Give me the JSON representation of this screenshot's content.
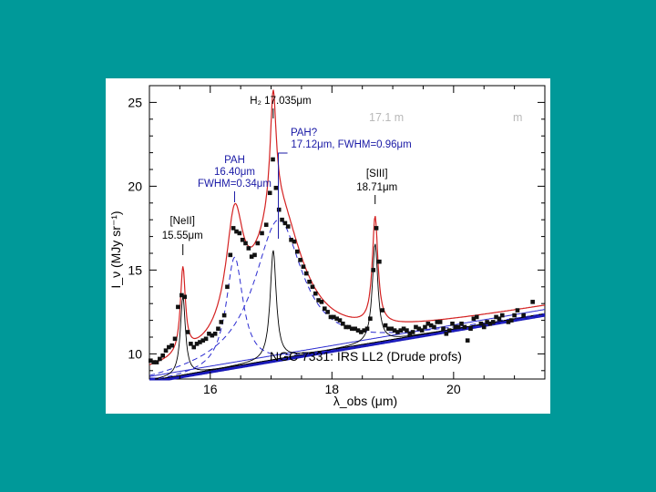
{
  "chart_data": {
    "type": "scatter",
    "title": "",
    "xlabel": "λ_obs (μm)",
    "ylabel": "I_ν (MJy sr⁻¹)",
    "xlim": [
      15.0,
      21.5
    ],
    "ylim": [
      8.5,
      26.0
    ],
    "x_ticks": [
      16,
      18,
      20
    ],
    "y_ticks": [
      10,
      15,
      20,
      25
    ],
    "grid": false,
    "colors": {
      "data_points": "#111111",
      "total_fit": "#d42222",
      "gaussian_components": "#000000",
      "pah_components": "#2a2ad0",
      "continuum": "#1818b8"
    },
    "caption": "NGC 7331: IRS LL2 (Drude profs)",
    "header_text": {
      "left": "17.1  m",
      "right": "m"
    },
    "annotations": [
      {
        "label": "[NeII]",
        "sublabel": "15.55μm",
        "x": 15.55,
        "color": "black"
      },
      {
        "label": "PAH",
        "sublabel": "16.40μm",
        "extra": "FWHM=0.34μm",
        "x": 16.4,
        "color": "blue"
      },
      {
        "label": "H₂ 17.035μm",
        "x": 17.035,
        "color": "black"
      },
      {
        "label": "PAH?",
        "sublabel": "17.12μm, FWHM=0.96μm",
        "x": 17.12,
        "color": "blue"
      },
      {
        "label": "[SIII]",
        "sublabel": "18.71μm",
        "x": 18.71,
        "color": "black"
      }
    ],
    "series": [
      {
        "role": "data",
        "points": [
          [
            15.02,
            9.6
          ],
          [
            15.07,
            9.5
          ],
          [
            15.12,
            9.5
          ],
          [
            15.17,
            9.7
          ],
          [
            15.22,
            9.9
          ],
          [
            15.27,
            10.2
          ],
          [
            15.32,
            10.4
          ],
          [
            15.37,
            10.5
          ],
          [
            15.42,
            10.9
          ],
          [
            15.47,
            12.8
          ],
          [
            15.53,
            13.5
          ],
          [
            15.58,
            13.4
          ],
          [
            15.63,
            11.3
          ],
          [
            15.68,
            10.6
          ],
          [
            15.73,
            10.4
          ],
          [
            15.78,
            10.6
          ],
          [
            15.83,
            10.7
          ],
          [
            15.88,
            10.8
          ],
          [
            15.93,
            10.9
          ],
          [
            15.98,
            11.2
          ],
          [
            16.03,
            11.1
          ],
          [
            16.08,
            11.2
          ],
          [
            16.13,
            11.5
          ],
          [
            16.18,
            11.9
          ],
          [
            16.23,
            12.3
          ],
          [
            16.28,
            14.0
          ],
          [
            16.33,
            15.9
          ],
          [
            16.38,
            17.5
          ],
          [
            16.43,
            17.3
          ],
          [
            16.48,
            17.2
          ],
          [
            16.53,
            16.8
          ],
          [
            16.58,
            16.6
          ],
          [
            16.63,
            16.3
          ],
          [
            16.68,
            15.8
          ],
          [
            16.73,
            15.9
          ],
          [
            16.78,
            16.6
          ],
          [
            16.85,
            17.2
          ],
          [
            16.92,
            17.7
          ],
          [
            16.98,
            19.6
          ],
          [
            17.03,
            21.6
          ],
          [
            17.08,
            19.9
          ],
          [
            17.13,
            18.6
          ],
          [
            17.18,
            18.0
          ],
          [
            17.23,
            17.8
          ],
          [
            17.28,
            17.6
          ],
          [
            17.33,
            16.8
          ],
          [
            17.38,
            16.7
          ],
          [
            17.43,
            16.1
          ],
          [
            17.48,
            15.6
          ],
          [
            17.53,
            15.2
          ],
          [
            17.58,
            14.8
          ],
          [
            17.63,
            14.3
          ],
          [
            17.68,
            14.0
          ],
          [
            17.73,
            13.6
          ],
          [
            17.78,
            13.2
          ],
          [
            17.83,
            13.1
          ],
          [
            17.88,
            12.7
          ],
          [
            17.93,
            12.5
          ],
          [
            17.98,
            12.2
          ],
          [
            18.03,
            12.2
          ],
          [
            18.08,
            12.1
          ],
          [
            18.13,
            12.0
          ],
          [
            18.18,
            11.8
          ],
          [
            18.23,
            11.6
          ],
          [
            18.28,
            11.6
          ],
          [
            18.33,
            11.5
          ],
          [
            18.38,
            11.5
          ],
          [
            18.43,
            11.4
          ],
          [
            18.48,
            11.3
          ],
          [
            18.53,
            11.4
          ],
          [
            18.58,
            11.5
          ],
          [
            18.63,
            12.1
          ],
          [
            18.68,
            15.0
          ],
          [
            18.73,
            17.5
          ],
          [
            18.78,
            15.5
          ],
          [
            18.83,
            12.6
          ],
          [
            18.88,
            11.7
          ],
          [
            18.93,
            11.5
          ],
          [
            18.98,
            11.5
          ],
          [
            19.03,
            11.4
          ],
          [
            19.08,
            11.3
          ],
          [
            19.13,
            11.4
          ],
          [
            19.18,
            11.5
          ],
          [
            19.23,
            11.4
          ],
          [
            19.28,
            11.2
          ],
          [
            19.33,
            11.3
          ],
          [
            19.38,
            11.6
          ],
          [
            19.43,
            11.5
          ],
          [
            19.48,
            11.4
          ],
          [
            19.53,
            11.6
          ],
          [
            19.58,
            11.8
          ],
          [
            19.63,
            11.7
          ],
          [
            19.68,
            11.6
          ],
          [
            19.73,
            11.9
          ],
          [
            19.78,
            11.9
          ],
          [
            19.83,
            11.5
          ],
          [
            19.88,
            11.2
          ],
          [
            19.93,
            11.4
          ],
          [
            19.98,
            11.8
          ],
          [
            20.03,
            11.6
          ],
          [
            20.08,
            11.6
          ],
          [
            20.13,
            11.8
          ],
          [
            20.18,
            11.6
          ],
          [
            20.23,
            10.8
          ],
          [
            20.28,
            11.5
          ],
          [
            20.33,
            12.1
          ],
          [
            20.38,
            12.2
          ],
          [
            20.45,
            11.8
          ],
          [
            20.5,
            11.6
          ],
          [
            20.55,
            11.9
          ],
          [
            20.6,
            11.8
          ],
          [
            20.65,
            11.9
          ],
          [
            20.7,
            12.2
          ],
          [
            20.75,
            12.1
          ],
          [
            20.8,
            12.3
          ],
          [
            20.9,
            11.9
          ],
          [
            20.95,
            12.0
          ],
          [
            21.0,
            12.3
          ],
          [
            21.05,
            12.6
          ],
          [
            21.15,
            12.3
          ],
          [
            21.3,
            13.1
          ]
        ]
      }
    ]
  }
}
